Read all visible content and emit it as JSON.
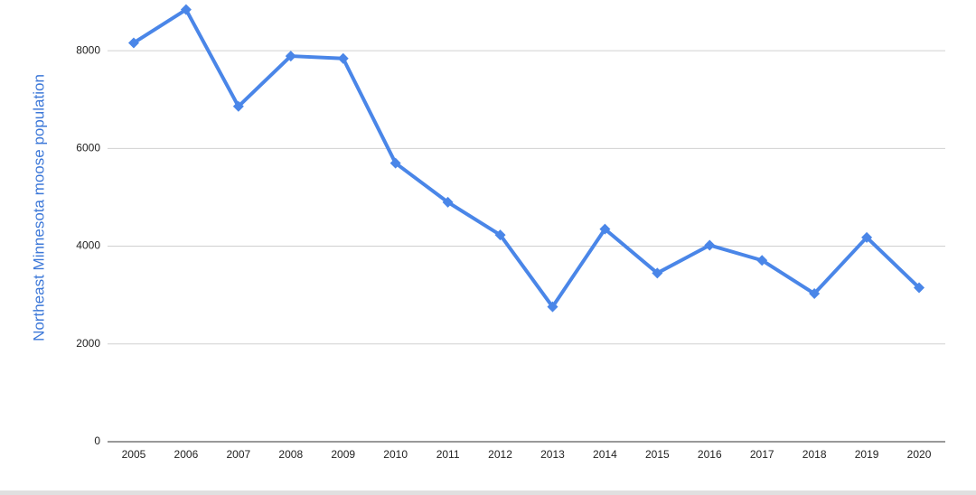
{
  "chart_data": {
    "type": "line",
    "y_label": "Northeast Minnesota moose population",
    "categories": [
      "2005",
      "2006",
      "2007",
      "2008",
      "2009",
      "2010",
      "2011",
      "2012",
      "2013",
      "2014",
      "2015",
      "2016",
      "2017",
      "2018",
      "2019",
      "2020"
    ],
    "values": [
      8160,
      8840,
      6860,
      7890,
      7840,
      5700,
      4900,
      4230,
      2760,
      4350,
      3450,
      4020,
      3710,
      3030,
      4180,
      3150
    ],
    "color": "#4a86e8",
    "marker": "diamond",
    "ylim": [
      0,
      9000
    ],
    "yticks": [
      0,
      2000,
      4000,
      6000,
      8000
    ],
    "grid": true
  }
}
